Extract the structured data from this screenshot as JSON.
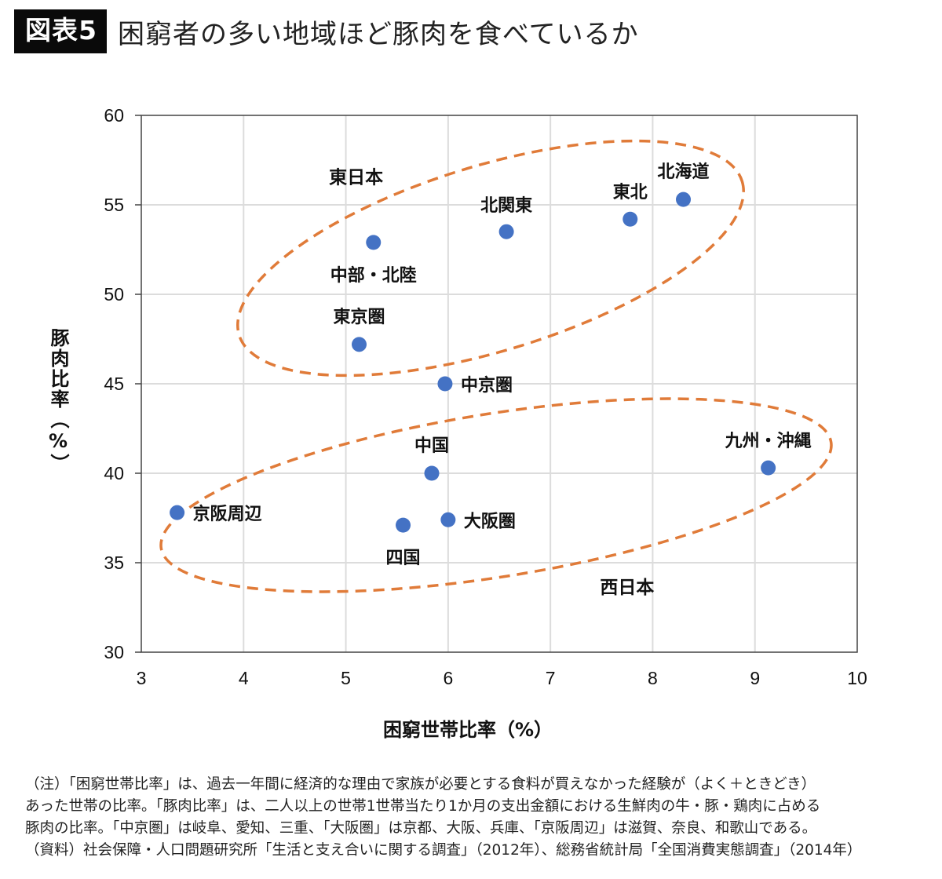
{
  "header": {
    "badge": "図表5",
    "title": "困窮者の多い地域ほど豚肉を食べているか"
  },
  "chart_data": {
    "type": "scatter",
    "title": "困窮者の多い地域ほど豚肉を食べているか",
    "xlabel": "困窮世帯比率（%）",
    "ylabel": "豚肉比率（%）",
    "xlim": [
      3,
      10
    ],
    "ylim": [
      30,
      60
    ],
    "xticks": [
      "3",
      "4",
      "5",
      "6",
      "7",
      "8",
      "9",
      "10"
    ],
    "yticks": [
      "30",
      "35",
      "40",
      "45",
      "50",
      "55",
      "60"
    ],
    "grid": true,
    "marker_color": "#4472C4",
    "group_outline_color": "#E07B39",
    "points": [
      {
        "label": "中部・北陸",
        "x": 5.27,
        "y": 52.9,
        "label_pos": "below"
      },
      {
        "label": "東京圏",
        "x": 5.13,
        "y": 47.2,
        "label_pos": "above"
      },
      {
        "label": "北関東",
        "x": 6.57,
        "y": 53.5,
        "label_pos": "above"
      },
      {
        "label": "東北",
        "x": 7.78,
        "y": 54.2,
        "label_pos": "above-left"
      },
      {
        "label": "北海道",
        "x": 8.3,
        "y": 55.3,
        "label_pos": "above"
      },
      {
        "label": "中京圏",
        "x": 5.97,
        "y": 45.0,
        "label_pos": "right"
      },
      {
        "label": "中国",
        "x": 5.84,
        "y": 40.0,
        "label_pos": "above"
      },
      {
        "label": "大阪圏",
        "x": 6.0,
        "y": 37.4,
        "label_pos": "right"
      },
      {
        "label": "四国",
        "x": 5.56,
        "y": 37.1,
        "label_pos": "below"
      },
      {
        "label": "京阪周辺",
        "x": 3.35,
        "y": 37.8,
        "label_pos": "right"
      },
      {
        "label": "九州・沖縄",
        "x": 9.13,
        "y": 40.3,
        "label_pos": "above"
      }
    ],
    "groups": [
      {
        "name": "東日本",
        "members": [
          "中部・北陸",
          "東京圏",
          "北関東",
          "東北",
          "北海道"
        ],
        "label_at": [
          5.1,
          56.2
        ]
      },
      {
        "name": "西日本",
        "members": [
          "中国",
          "大阪圏",
          "四国",
          "京阪周辺",
          "九州・沖縄"
        ],
        "label_at": [
          7.75,
          33.3
        ]
      }
    ]
  },
  "notes": [
    "（注）「困窮世帯比率」は、過去一年間に経済的な理由で家族が必要とする食料が買えなかった経験が（よく＋ときどき）",
    "あった世帯の比率。「豚肉比率」は、二人以上の世帯1世帯当たり1か月の支出金額における生鮮肉の牛・豚・鶏肉に占める",
    "豚肉の比率。「中京圏」は岐阜、愛知、三重、「大阪圏」は京都、大阪、兵庫、「京阪周辺」は滋賀、奈良、和歌山である。",
    "（資料）社会保障・人口問題研究所「生活と支え合いに関する調査」（2012年）、総務省統計局「全国消費実態調査」（2014年）"
  ]
}
